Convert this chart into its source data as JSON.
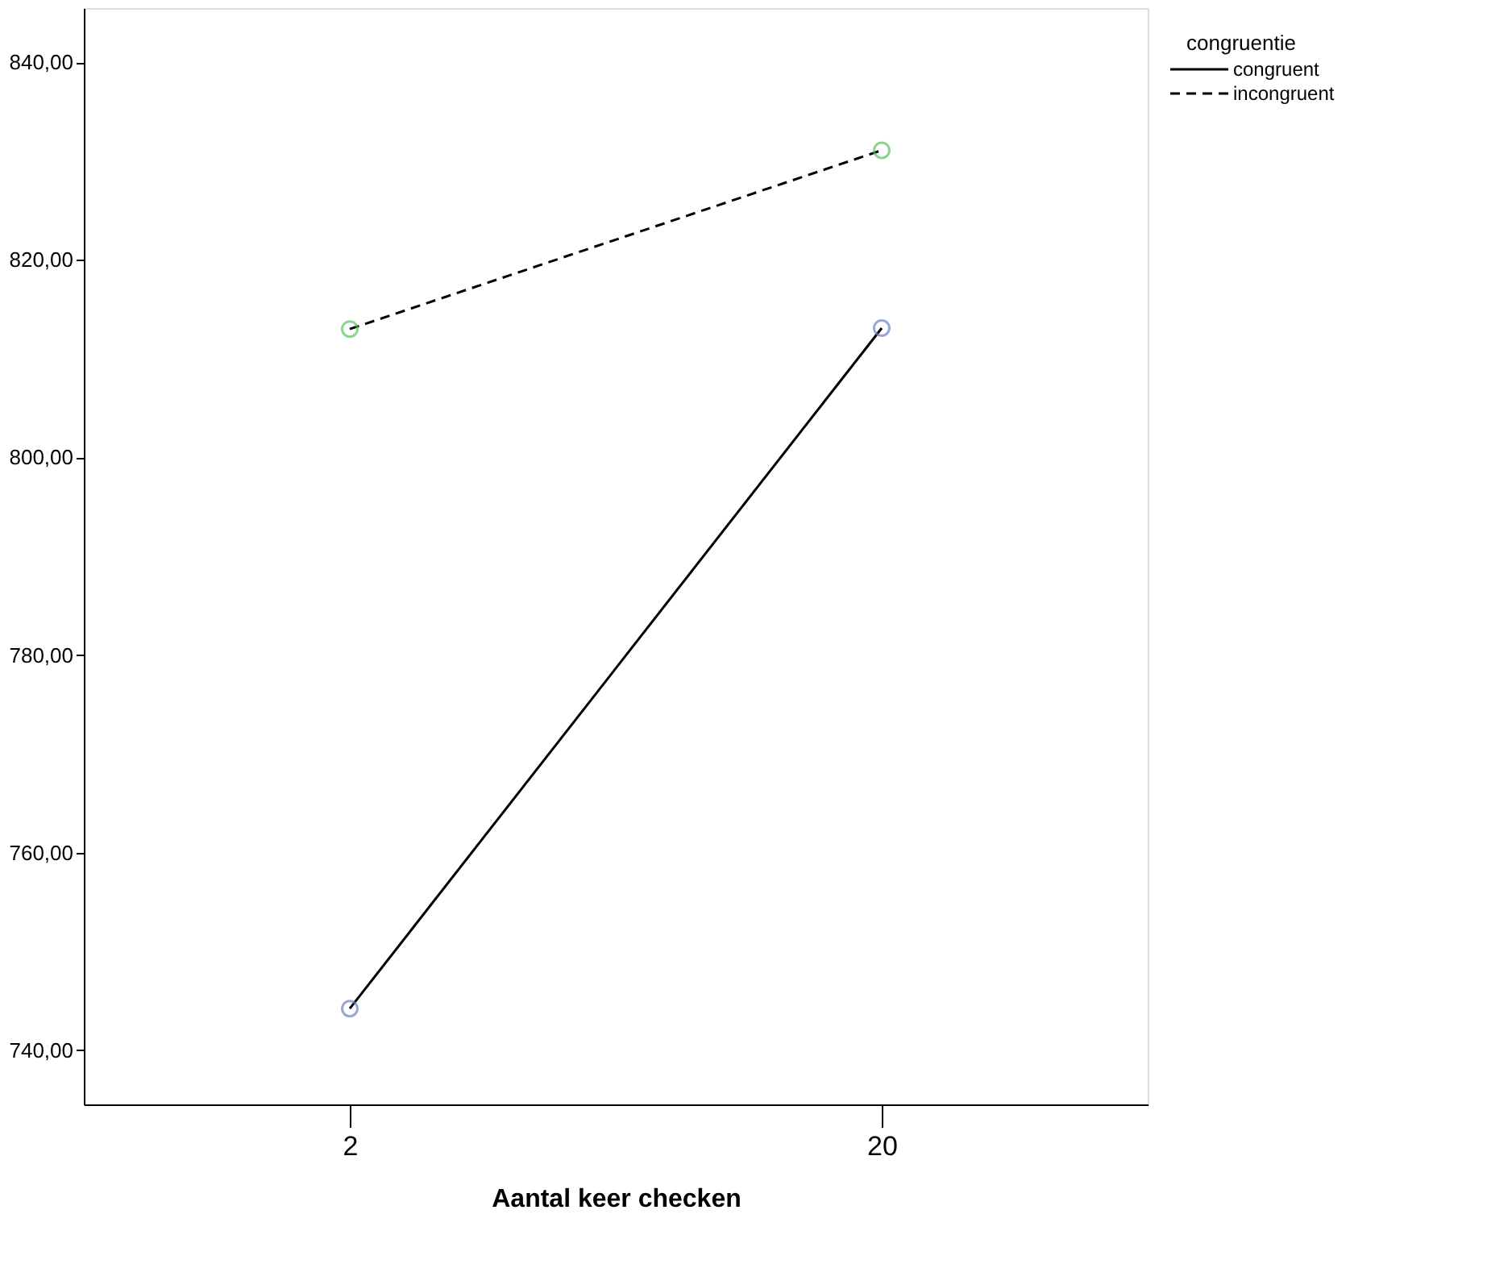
{
  "chart_data": {
    "type": "line",
    "categories": [
      "2",
      "20"
    ],
    "series": [
      {
        "name": "congruent",
        "color": "#000000",
        "colors": [
          "#6f82c4",
          "#6f82c4"
        ],
        "line_style": "solid",
        "values": [
          744.2,
          813.1
        ]
      },
      {
        "name": "incongruent",
        "color": "#000000",
        "colors": [
          "#5fbf63",
          "#5fbf63"
        ],
        "line_style": "dashed",
        "values": [
          813.0,
          831.1
        ]
      }
    ],
    "xlabel": "Aantal keer checken",
    "legend_title": "congruentie",
    "legend": "top right",
    "marker": "circle",
    "grid": false,
    "ylim": [
      734.5,
      845.5
    ],
    "yticks": [
      {
        "value": 740,
        "label": "740,00"
      },
      {
        "value": 760,
        "label": "760,00"
      },
      {
        "value": 780,
        "label": "780,00"
      },
      {
        "value": 800,
        "label": "800,00"
      },
      {
        "value": 820,
        "label": "820,00"
      },
      {
        "value": 840,
        "label": "840,00"
      }
    ]
  }
}
